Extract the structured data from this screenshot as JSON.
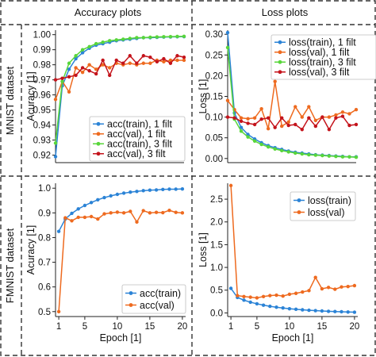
{
  "figure": {
    "column_titles": [
      "Accuracy plots",
      "Loss plots"
    ],
    "row_titles": [
      "MNIST dataset",
      "FMNIST dataset"
    ]
  },
  "colors": {
    "blue": "#2b83d6",
    "orange": "#ee6a1f",
    "green": "#58d63a",
    "red": "#c4131b"
  },
  "chart_data": [
    {
      "id": "mnist-accuracy",
      "type": "line",
      "xlabel": "",
      "ylabel": "Acuracy [1]",
      "xlim": [
        1,
        20
      ],
      "ylim": [
        0.915,
        1.003
      ],
      "yticks": [
        0.92,
        0.93,
        0.94,
        0.95,
        0.96,
        0.97,
        0.98,
        0.99,
        1.0
      ],
      "ytick_labels": [
        "0.92",
        "0.93",
        "0.94",
        "0.95",
        "0.96",
        "0.97",
        "0.98",
        "0.99",
        "1.00"
      ],
      "xticks": [],
      "legend_position": "lower-right",
      "x": [
        1,
        2,
        3,
        4,
        5,
        6,
        7,
        8,
        9,
        10,
        11,
        12,
        13,
        14,
        15,
        16,
        17,
        18,
        19,
        20
      ],
      "series": [
        {
          "name": "acc(train), 1 filt",
          "color": "#2b83d6",
          "values": [
            0.919,
            0.966,
            0.977,
            0.984,
            0.988,
            0.991,
            0.993,
            0.994,
            0.995,
            0.996,
            0.9965,
            0.997,
            0.9975,
            0.998,
            0.998,
            0.9982,
            0.9984,
            0.9985,
            0.9986,
            0.9987
          ]
        },
        {
          "name": "acc(val), 1 filt",
          "color": "#ee6a1f",
          "values": [
            0.957,
            0.969,
            0.962,
            0.978,
            0.975,
            0.98,
            0.977,
            0.98,
            0.978,
            0.981,
            0.98,
            0.981,
            0.98,
            0.981,
            0.981,
            0.983,
            0.982,
            0.983,
            0.983,
            0.983
          ]
        },
        {
          "name": "acc(train), 3 filt",
          "color": "#58d63a",
          "values": [
            0.928,
            0.969,
            0.981,
            0.986,
            0.99,
            0.992,
            0.994,
            0.995,
            0.996,
            0.9965,
            0.997,
            0.9975,
            0.998,
            0.998,
            0.9983,
            0.9985,
            0.9986,
            0.9987,
            0.9988,
            0.9989
          ]
        },
        {
          "name": "acc(val), 3 filt",
          "color": "#c4131b",
          "values": [
            0.97,
            0.971,
            0.972,
            0.973,
            0.978,
            0.976,
            0.974,
            0.983,
            0.973,
            0.983,
            0.981,
            0.986,
            0.981,
            0.986,
            0.985,
            0.982,
            0.984,
            0.981,
            0.986,
            0.985
          ]
        }
      ]
    },
    {
      "id": "mnist-loss",
      "type": "line",
      "xlabel": "",
      "ylabel": "Loss [1]",
      "xlim": [
        1,
        20
      ],
      "ylim": [
        -0.01,
        0.31
      ],
      "yticks": [
        0.0,
        0.05,
        0.1,
        0.15,
        0.2,
        0.25,
        0.3
      ],
      "ytick_labels": [
        "0.00",
        "0.05",
        "0.10",
        "0.15",
        "0.20",
        "0.25",
        "0.30"
      ],
      "xticks": [],
      "legend_position": "top-right",
      "x": [
        1,
        2,
        3,
        4,
        5,
        6,
        7,
        8,
        9,
        10,
        11,
        12,
        13,
        14,
        15,
        16,
        17,
        18,
        19,
        20
      ],
      "series": [
        {
          "name": "loss(train), 1 filt",
          "color": "#2b83d6",
          "values": [
            0.304,
            0.11,
            0.075,
            0.058,
            0.047,
            0.038,
            0.031,
            0.026,
            0.022,
            0.018,
            0.015,
            0.013,
            0.011,
            0.009,
            0.008,
            0.007,
            0.006,
            0.005,
            0.004,
            0.004
          ]
        },
        {
          "name": "loss(val), 1 filt",
          "color": "#ee6a1f",
          "values": [
            0.14,
            0.118,
            0.098,
            0.096,
            0.098,
            0.12,
            0.072,
            0.186,
            0.078,
            0.088,
            0.125,
            0.1,
            0.125,
            0.092,
            0.1,
            0.1,
            0.105,
            0.112,
            0.108,
            0.118
          ]
        },
        {
          "name": "loss(train), 3 filt",
          "color": "#58d63a",
          "values": [
            0.268,
            0.095,
            0.066,
            0.052,
            0.042,
            0.034,
            0.028,
            0.023,
            0.019,
            0.016,
            0.013,
            0.011,
            0.009,
            0.008,
            0.007,
            0.006,
            0.005,
            0.004,
            0.004,
            0.003
          ]
        },
        {
          "name": "loss(val), 3 filt",
          "color": "#c4131b",
          "values": [
            0.1,
            0.098,
            0.09,
            0.085,
            0.082,
            0.095,
            0.098,
            0.075,
            0.098,
            0.08,
            0.082,
            0.07,
            0.098,
            0.078,
            0.1,
            0.07,
            0.098,
            0.102,
            0.08,
            0.082
          ]
        }
      ]
    },
    {
      "id": "fmnist-accuracy",
      "type": "line",
      "xlabel": "Epoch [1]",
      "ylabel": "Acuracy [1]",
      "xlim": [
        0.5,
        20.5
      ],
      "ylim": [
        0.48,
        1.02
      ],
      "yticks": [
        0.5,
        0.6,
        0.7,
        0.8,
        0.9,
        1.0
      ],
      "ytick_labels": [
        "0.5",
        "0.6",
        "0.7",
        "0.8",
        "0.9",
        "1.0"
      ],
      "xticks": [
        1,
        5,
        10,
        15,
        20
      ],
      "xtick_labels": [
        "1",
        "5",
        "10",
        "15",
        "20"
      ],
      "legend_position": "lower-right",
      "x": [
        1,
        2,
        3,
        4,
        5,
        6,
        7,
        8,
        9,
        10,
        11,
        12,
        13,
        14,
        15,
        16,
        17,
        18,
        19,
        20
      ],
      "series": [
        {
          "name": "acc(train)",
          "color": "#2b83d6",
          "values": [
            0.825,
            0.875,
            0.898,
            0.916,
            0.93,
            0.942,
            0.953,
            0.962,
            0.969,
            0.975,
            0.98,
            0.984,
            0.987,
            0.99,
            0.992,
            0.993,
            0.995,
            0.996,
            0.996,
            0.997
          ]
        },
        {
          "name": "acc(val)",
          "color": "#ee6a1f",
          "values": [
            0.5,
            0.88,
            0.868,
            0.882,
            0.882,
            0.885,
            0.875,
            0.896,
            0.9,
            0.903,
            0.9,
            0.906,
            0.863,
            0.909,
            0.9,
            0.902,
            0.901,
            0.91,
            0.902,
            0.9
          ]
        }
      ]
    },
    {
      "id": "fmnist-loss",
      "type": "line",
      "xlabel": "Epoch [1]",
      "ylabel": "Loss [1]",
      "xlim": [
        0.5,
        20.5
      ],
      "ylim": [
        -0.08,
        2.85
      ],
      "yticks": [
        0.0,
        0.5,
        1.0,
        1.5,
        2.0,
        2.5
      ],
      "ytick_labels": [
        "0.0",
        "0.5",
        "1.0",
        "1.5",
        "2.0",
        "2.5"
      ],
      "xticks": [
        1,
        5,
        10,
        15,
        20
      ],
      "xtick_labels": [
        "1",
        "5",
        "10",
        "15",
        "20"
      ],
      "legend_position": "top-right",
      "x": [
        1,
        2,
        3,
        4,
        5,
        6,
        7,
        8,
        9,
        10,
        11,
        12,
        13,
        14,
        15,
        16,
        17,
        18,
        19,
        20
      ],
      "series": [
        {
          "name": "loss(train)",
          "color": "#2b83d6",
          "values": [
            0.54,
            0.34,
            0.28,
            0.235,
            0.2,
            0.17,
            0.145,
            0.125,
            0.108,
            0.092,
            0.08,
            0.068,
            0.058,
            0.05,
            0.042,
            0.035,
            0.03,
            0.025,
            0.02,
            0.015
          ]
        },
        {
          "name": "loss(val)",
          "color": "#ee6a1f",
          "values": [
            2.8,
            0.38,
            0.36,
            0.345,
            0.33,
            0.36,
            0.38,
            0.39,
            0.37,
            0.41,
            0.43,
            0.46,
            0.49,
            0.78,
            0.53,
            0.56,
            0.52,
            0.57,
            0.58,
            0.6
          ]
        }
      ]
    }
  ]
}
